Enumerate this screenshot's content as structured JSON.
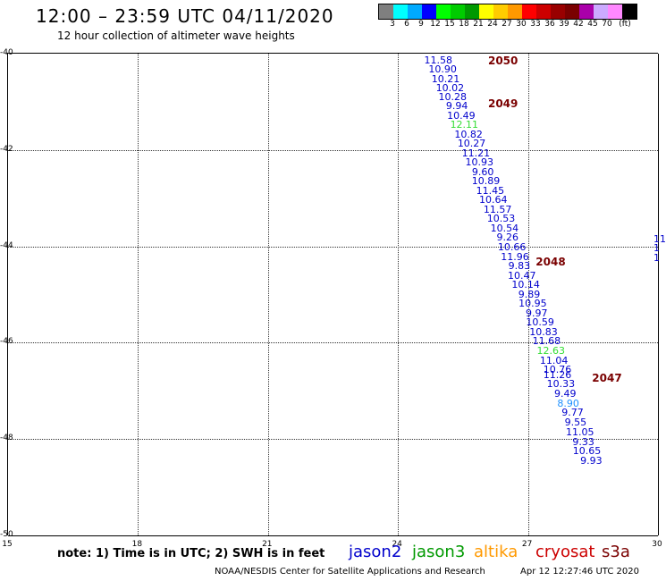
{
  "header": {
    "title": "12:00 – 23:59 UTC 04/11/2020",
    "subtitle": "12 hour collection of altimeter wave heights"
  },
  "colorbar": {
    "colors": [
      "#7f7f7f",
      "#00ffff",
      "#00aaff",
      "#0000ff",
      "#00ff00",
      "#00cc00",
      "#009900",
      "#ffff00",
      "#ffcc00",
      "#ff9900",
      "#ff0000",
      "#cc0000",
      "#990000",
      "#7a0000",
      "#aa00aa",
      "#ccaaff",
      "#ff88ff",
      "#000000"
    ],
    "labels": [
      "3",
      "6",
      "9",
      "12",
      "15",
      "18",
      "21",
      "24",
      "27",
      "30",
      "33",
      "36",
      "39",
      "42",
      "45",
      "70",
      "(ft)"
    ]
  },
  "map": {
    "lon_range": [
      15,
      30
    ],
    "lat_range": [
      -50,
      -40
    ],
    "x_ticks": [
      "15",
      "18",
      "21",
      "24",
      "27",
      "30"
    ],
    "y_ticks": [
      "-40",
      "-42",
      "-44",
      "-46",
      "-48",
      "-50"
    ],
    "observations": [
      {
        "lon": 24.95,
        "lat": -40.17,
        "v": "11.58",
        "c": "#0000cc"
      },
      {
        "lon": 25.05,
        "lat": -40.36,
        "v": "10.90",
        "c": "#0000cc"
      },
      {
        "lon": 25.12,
        "lat": -40.55,
        "v": "10.21",
        "c": "#0000cc"
      },
      {
        "lon": 25.22,
        "lat": -40.74,
        "v": "10.02",
        "c": "#0000cc"
      },
      {
        "lon": 25.28,
        "lat": -40.93,
        "v": "10.28",
        "c": "#0000cc"
      },
      {
        "lon": 25.38,
        "lat": -41.12,
        "v": "9.94",
        "c": "#0000cc"
      },
      {
        "lon": 25.48,
        "lat": -41.32,
        "v": "10.49",
        "c": "#0000cc"
      },
      {
        "lon": 25.55,
        "lat": -41.51,
        "v": "12.11",
        "c": "#33dd33"
      },
      {
        "lon": 25.65,
        "lat": -41.7,
        "v": "10.82",
        "c": "#0000cc"
      },
      {
        "lon": 25.72,
        "lat": -41.9,
        "v": "10.27",
        "c": "#0000cc"
      },
      {
        "lon": 25.82,
        "lat": -42.09,
        "v": "11.21",
        "c": "#0000cc"
      },
      {
        "lon": 25.9,
        "lat": -42.29,
        "v": "10.93",
        "c": "#0000cc"
      },
      {
        "lon": 25.98,
        "lat": -42.48,
        "v": "9.60",
        "c": "#0000cc"
      },
      {
        "lon": 26.05,
        "lat": -42.68,
        "v": "10.89",
        "c": "#0000cc"
      },
      {
        "lon": 26.15,
        "lat": -42.87,
        "v": "11.45",
        "c": "#0000cc"
      },
      {
        "lon": 26.22,
        "lat": -43.06,
        "v": "10.64",
        "c": "#0000cc"
      },
      {
        "lon": 26.32,
        "lat": -43.26,
        "v": "11.57",
        "c": "#0000cc"
      },
      {
        "lon": 26.4,
        "lat": -43.45,
        "v": "10.53",
        "c": "#0000cc"
      },
      {
        "lon": 26.48,
        "lat": -43.65,
        "v": "10.54",
        "c": "#0000cc"
      },
      {
        "lon": 26.55,
        "lat": -43.84,
        "v": "9.26",
        "c": "#0000cc"
      },
      {
        "lon": 26.65,
        "lat": -44.04,
        "v": "10.66",
        "c": "#0000cc"
      },
      {
        "lon": 26.72,
        "lat": -44.24,
        "v": "11.96",
        "c": "#0000cc"
      },
      {
        "lon": 26.82,
        "lat": -44.43,
        "v": "9.83",
        "c": "#0000cc"
      },
      {
        "lon": 26.88,
        "lat": -44.63,
        "v": "10.47",
        "c": "#0000cc"
      },
      {
        "lon": 26.97,
        "lat": -44.83,
        "v": "10.14",
        "c": "#0000cc"
      },
      {
        "lon": 27.05,
        "lat": -45.02,
        "v": "9.89",
        "c": "#0000cc"
      },
      {
        "lon": 27.13,
        "lat": -45.22,
        "v": "10.95",
        "c": "#0000cc"
      },
      {
        "lon": 27.22,
        "lat": -45.42,
        "v": "9.97",
        "c": "#0000cc"
      },
      {
        "lon": 27.3,
        "lat": -45.61,
        "v": "10.59",
        "c": "#0000cc"
      },
      {
        "lon": 27.38,
        "lat": -45.81,
        "v": "10.83",
        "c": "#0000cc"
      },
      {
        "lon": 27.45,
        "lat": -46.0,
        "v": "11.68",
        "c": "#0000cc"
      },
      {
        "lon": 27.55,
        "lat": -46.2,
        "v": "12.63",
        "c": "#33dd33"
      },
      {
        "lon": 27.62,
        "lat": -46.4,
        "v": "11.04",
        "c": "#0000cc"
      },
      {
        "lon": 27.7,
        "lat": -46.59,
        "v": "10.76",
        "c": "#0000cc"
      },
      {
        "lon": 27.7,
        "lat": -46.69,
        "v": "11.26",
        "c": "#0000cc"
      },
      {
        "lon": 27.78,
        "lat": -46.89,
        "v": "10.33",
        "c": "#0000cc"
      },
      {
        "lon": 27.88,
        "lat": -47.09,
        "v": "9.49",
        "c": "#0000cc"
      },
      {
        "lon": 27.95,
        "lat": -47.29,
        "v": "8.90",
        "c": "#1e90ff"
      },
      {
        "lon": 28.05,
        "lat": -47.48,
        "v": "9.77",
        "c": "#0000cc"
      },
      {
        "lon": 28.12,
        "lat": -47.68,
        "v": "9.55",
        "c": "#0000cc"
      },
      {
        "lon": 28.22,
        "lat": -47.88,
        "v": "11.05",
        "c": "#0000cc"
      },
      {
        "lon": 28.3,
        "lat": -48.08,
        "v": "9.33",
        "c": "#0000cc"
      },
      {
        "lon": 28.38,
        "lat": -48.28,
        "v": "10.65",
        "c": "#0000cc"
      },
      {
        "lon": 28.48,
        "lat": -48.48,
        "v": "9.93",
        "c": "#0000cc"
      },
      {
        "lon": 30.05,
        "lat": -43.88,
        "v": "11",
        "c": "#0000cc"
      },
      {
        "lon": 30.05,
        "lat": -44.07,
        "v": "1",
        "c": "#0000cc"
      },
      {
        "lon": 30.05,
        "lat": -44.27,
        "v": "1",
        "c": "#0000cc"
      }
    ],
    "pass_labels": [
      {
        "lon": 26.1,
        "lat": -40.17,
        "v": "2050"
      },
      {
        "lon": 26.1,
        "lat": -41.05,
        "v": "2049"
      },
      {
        "lon": 27.2,
        "lat": -44.35,
        "v": "2048"
      },
      {
        "lon": 28.5,
        "lat": -46.75,
        "v": "2047"
      }
    ]
  },
  "footer": {
    "note": "note: 1) Time is in UTC; 2) SWH is in feet",
    "legend": [
      {
        "name": "jason2",
        "color": "#0000cc"
      },
      {
        "name": "jason3",
        "color": "#009900"
      },
      {
        "name": "altika",
        "color": "#ff9900"
      },
      {
        "name": "cryosat",
        "color": "#cc0000"
      },
      {
        "name": "s3a",
        "color": "#7a0000"
      }
    ],
    "credit": "NOAA/NESDIS Center for Satellite Applications and Research",
    "timestamp": "Apr 12 12:27:46 UTC 2020"
  }
}
